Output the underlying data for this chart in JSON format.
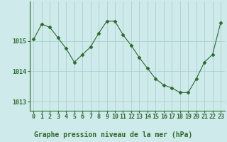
{
  "x": [
    0,
    1,
    2,
    3,
    4,
    5,
    6,
    7,
    8,
    9,
    10,
    11,
    12,
    13,
    14,
    15,
    16,
    17,
    18,
    19,
    20,
    21,
    22,
    23
  ],
  "y": [
    1015.05,
    1015.55,
    1015.45,
    1015.1,
    1014.75,
    1014.3,
    1014.55,
    1014.8,
    1015.25,
    1015.65,
    1015.65,
    1015.2,
    1014.85,
    1014.45,
    1014.1,
    1013.75,
    1013.55,
    1013.45,
    1013.3,
    1013.3,
    1013.75,
    1014.3,
    1014.55,
    1015.6
  ],
  "line_color": "#2d6a2d",
  "marker": "D",
  "marker_size": 2.5,
  "bg_color": "#ceeaea",
  "grid_color": "#aad0d0",
  "border_color": "#2d6a2d",
  "xlabel": "Graphe pression niveau de la mer (hPa)",
  "xlabel_color": "#2d6a2d",
  "xlabel_fontsize": 7,
  "yticks": [
    1013,
    1014,
    1015
  ],
  "ylim": [
    1012.7,
    1016.3
  ],
  "xlim": [
    -0.5,
    23.5
  ],
  "tick_color": "#2d6a2d",
  "tick_fontsize": 6,
  "xtick_labels": [
    "0",
    "1",
    "2",
    "3",
    "4",
    "5",
    "6",
    "7",
    "8",
    "9",
    "10",
    "11",
    "12",
    "13",
    "14",
    "15",
    "16",
    "17",
    "18",
    "19",
    "20",
    "21",
    "22",
    "23"
  ]
}
